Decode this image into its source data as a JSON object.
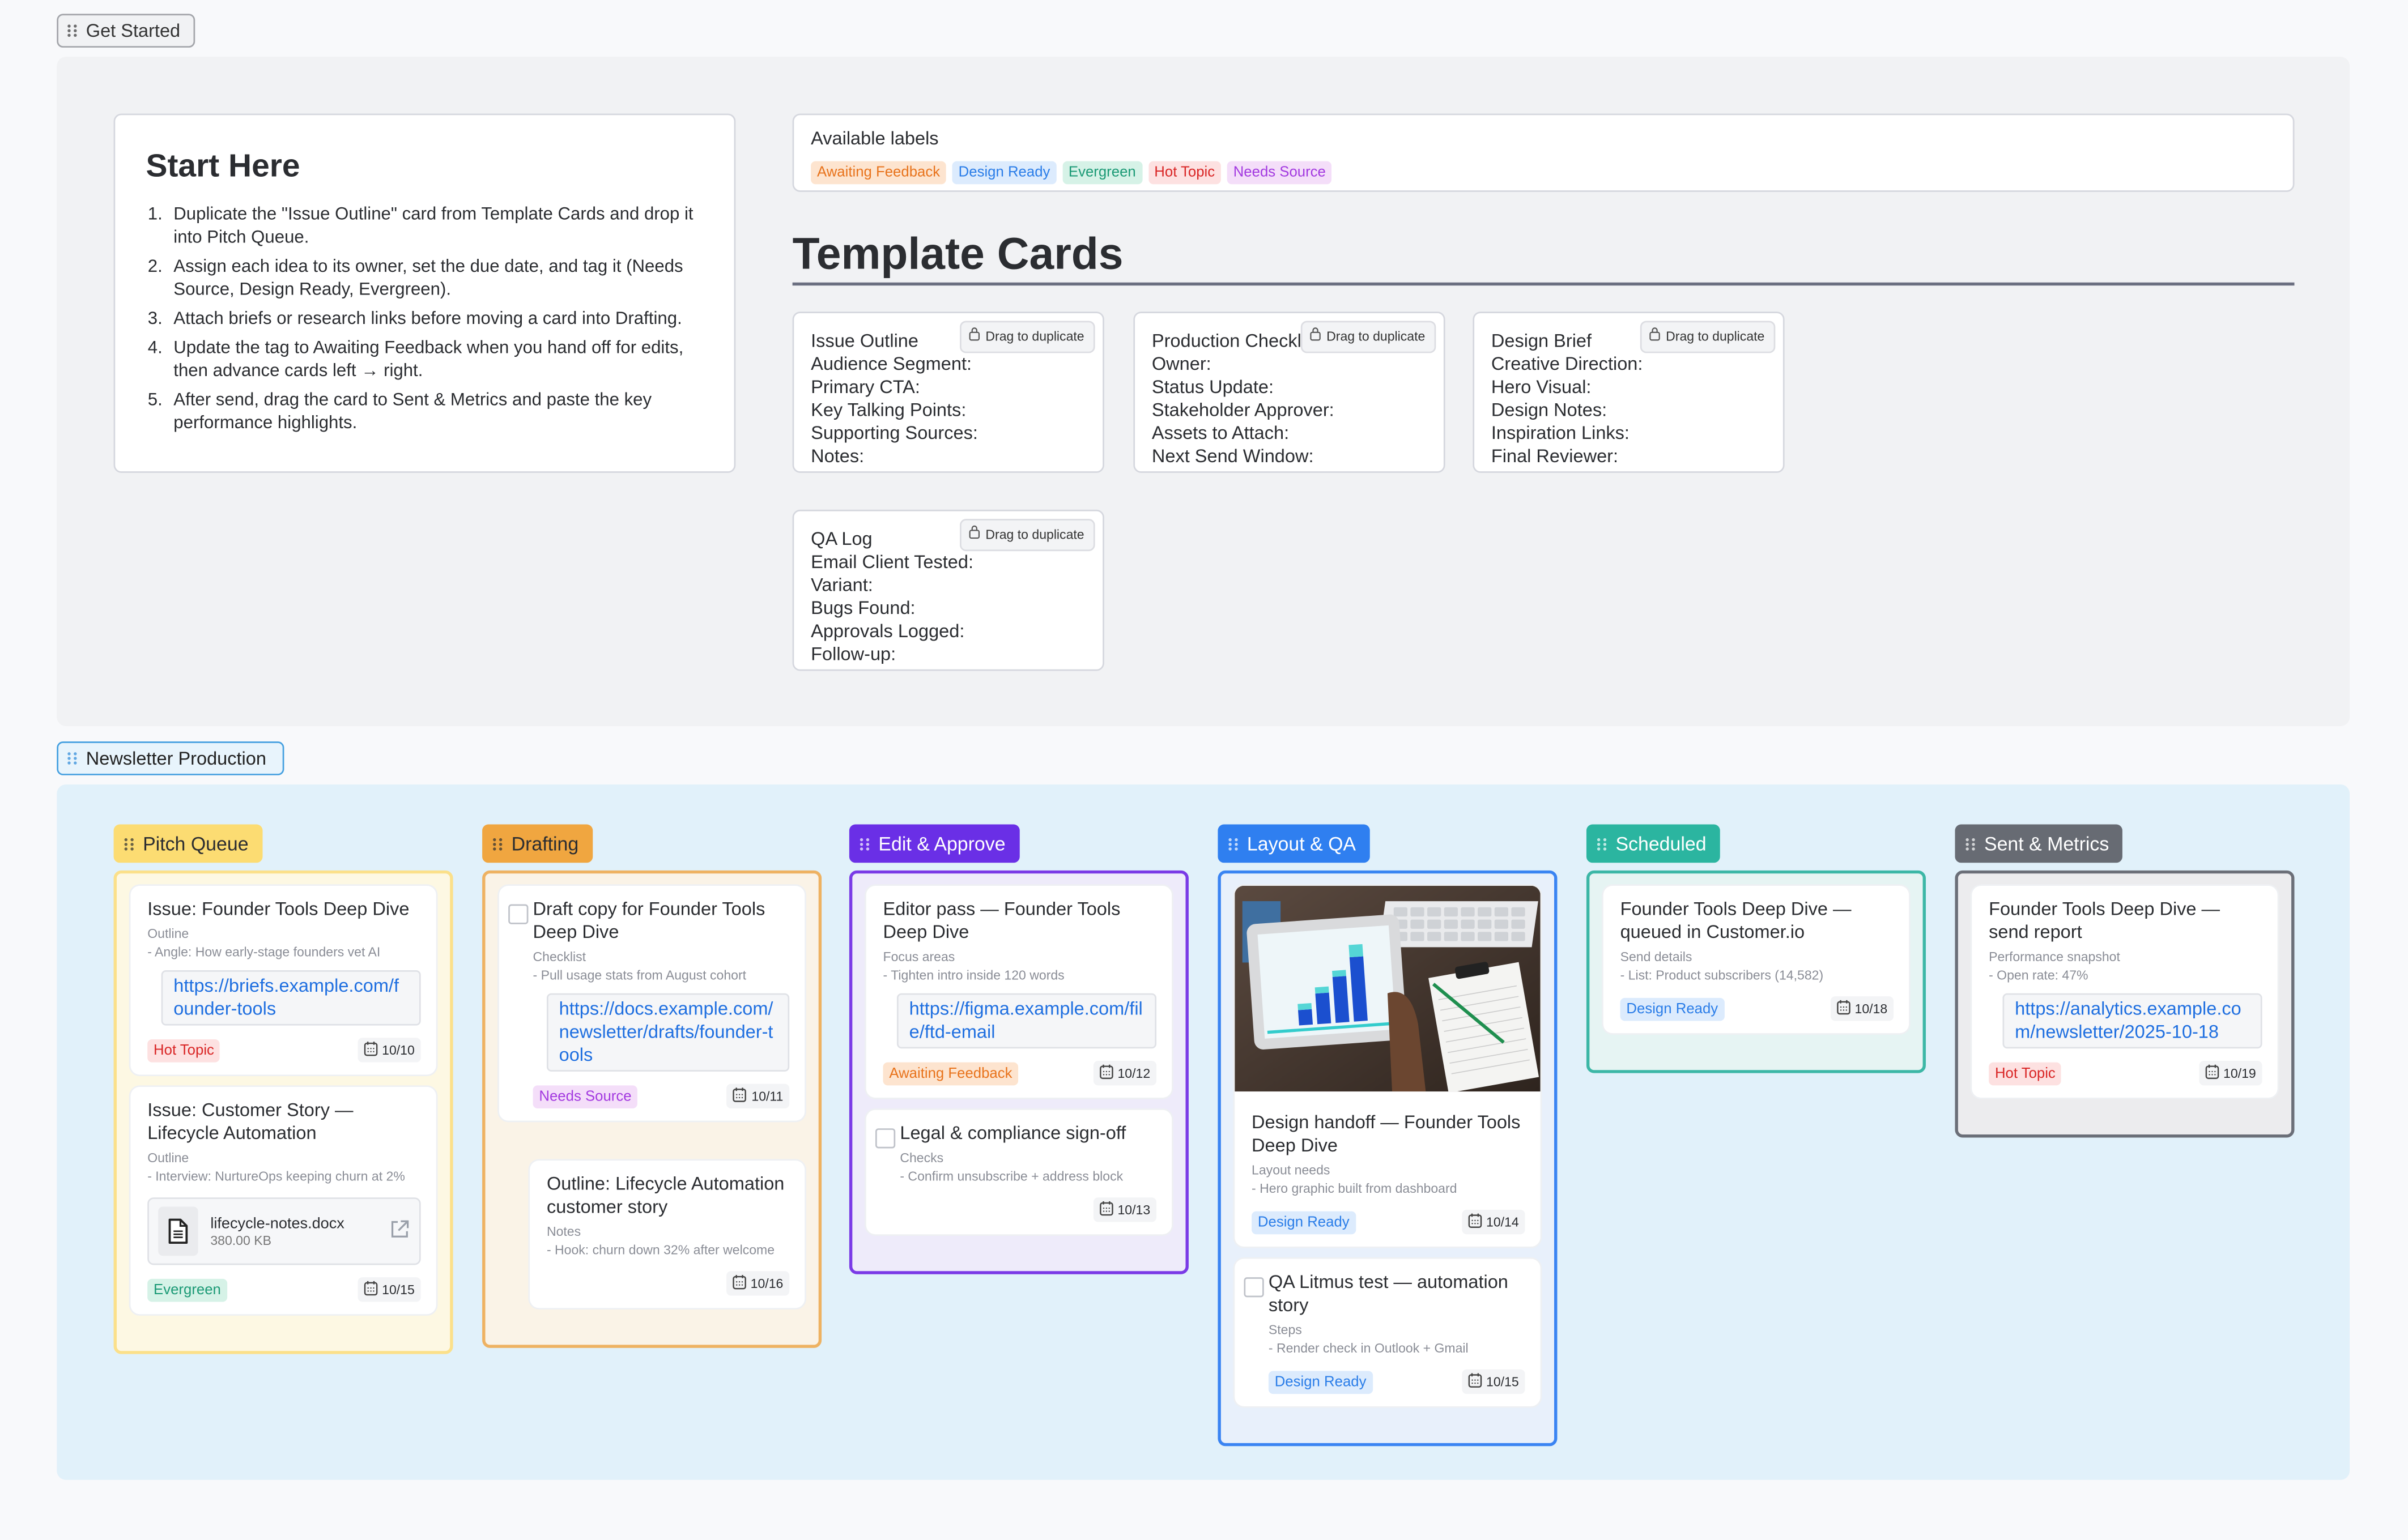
{
  "get_started": {
    "tab_label": "Get Started",
    "start_here": {
      "title": "Start Here",
      "steps": [
        "Duplicate the \"Issue Outline\" card from Template Cards and drop it into Pitch Queue.",
        "Assign each idea to its owner, set the due date, and tag it (Needs Source, Design Ready, Evergreen).",
        "Attach briefs or research links before moving a card into Drafting.",
        "Update the tag to Awaiting Feedback when you hand off for edits, then advance cards left → right.",
        "After send, drag the card to Sent & Metrics and paste the key performance highlights."
      ]
    },
    "labels": {
      "title": "Available labels",
      "items": [
        {
          "name": "Awaiting Feedback",
          "color": "#e8731c",
          "bg": "#fde4cf"
        },
        {
          "name": "Design Ready",
          "color": "#2a7de8",
          "bg": "#dcebfd"
        },
        {
          "name": "Evergreen",
          "color": "#1c9a76",
          "bg": "#d6f2e7"
        },
        {
          "name": "Hot Topic",
          "color": "#d92626",
          "bg": "#fde1e1"
        },
        {
          "name": "Needs Source",
          "color": "#a33ae0",
          "bg": "#f4def9"
        }
      ]
    },
    "template_heading": "Template Cards",
    "templates": [
      {
        "title": "Issue Outline",
        "action": "Drag to duplicate",
        "fields": [
          "Audience Segment:",
          "Primary CTA:",
          "Key Talking Points:",
          "Supporting Sources:",
          "Notes:"
        ]
      },
      {
        "title": "Production Checklist",
        "action": "Drag to duplicate",
        "fields": [
          "Owner:",
          "Status Update:",
          "Stakeholder Approver:",
          "Assets to Attach:",
          "Next Send Window:"
        ]
      },
      {
        "title": "Design Brief",
        "action": "Drag to duplicate",
        "fields": [
          "Creative Direction:",
          "Hero Visual:",
          "Design Notes:",
          "Inspiration Links:",
          "Final Reviewer:"
        ]
      },
      {
        "title": "QA Log",
        "action": "Drag to duplicate",
        "fields": [
          "Email Client Tested:",
          "Variant:",
          "Bugs Found:",
          "Approvals Logged:",
          "Follow-up:"
        ]
      }
    ]
  },
  "production": {
    "tab_label": "Newsletter Production",
    "columns": [
      {
        "title": "Pitch Queue",
        "head_bg": "#fcdc72",
        "head_fg": "#2b2d31",
        "border": "#fbe08a",
        "bg": "#fdf8e3",
        "cards": [
          {
            "title": "Issue: Founder Tools Deep Dive",
            "section": "Outline",
            "detail": "- Angle: How early-stage founders vet AI",
            "link": "https://briefs.example.com/founder-tools",
            "label": "Hot Topic",
            "date": "10/10"
          },
          {
            "title": "Issue: Customer Story — Lifecycle Automation",
            "section": "Outline",
            "detail": "- Interview: NurtureOps keeping churn at 2%",
            "file": {
              "name": "lifecycle-notes.docx",
              "size": "380.00 KB"
            },
            "label": "Evergreen",
            "date": "10/15"
          }
        ]
      },
      {
        "title": "Drafting",
        "head_bg": "#f0a640",
        "head_fg": "#2b2d31",
        "border": "#eeb262",
        "bg": "#faf3e7",
        "cards": [
          {
            "title": "Draft copy for Founder Tools Deep Dive",
            "checkbox": true,
            "section": "Checklist",
            "detail": "- Pull usage stats from August cohort",
            "link": "https://docs.example.com/newsletter/drafts/founder-tools",
            "label": "Needs Source",
            "date": "10/11"
          },
          {
            "title": "Outline: Lifecycle Automation customer story",
            "indent": true,
            "section": "Notes",
            "detail": "- Hook: churn down 32% after welcome",
            "date": "10/16"
          }
        ]
      },
      {
        "title": "Edit & Approve",
        "head_bg": "#6a2fe6",
        "head_fg": "#ffffff",
        "border": "#7a3ae6",
        "bg": "#eeebfa",
        "cards": [
          {
            "title": "Editor pass — Founder Tools Deep Dive",
            "section": "Focus areas",
            "detail": "- Tighten intro inside 120 words",
            "link": "https://figma.example.com/file/ftd-email",
            "label": "Awaiting Feedback",
            "date": "10/12"
          },
          {
            "title": "Legal & compliance sign-off",
            "checkbox": true,
            "section": "Checks",
            "detail": "- Confirm unsubscribe + address block",
            "date": "10/13"
          }
        ]
      },
      {
        "title": "Layout & QA",
        "head_bg": "#2f7ff0",
        "head_fg": "#ffffff",
        "border": "#3a84f2",
        "bg": "#e8f0fb",
        "cards": [
          {
            "title": "Design handoff — Founder Tools Deep Dive",
            "image": true,
            "section": "Layout needs",
            "detail": "- Hero graphic built from dashboard",
            "label": "Design Ready",
            "date": "10/14"
          },
          {
            "title": "QA Litmus test — automation story",
            "checkbox": true,
            "section": "Steps",
            "detail": "- Render check in Outlook + Gmail",
            "label": "Design Ready",
            "date": "10/15"
          }
        ]
      },
      {
        "title": "Scheduled",
        "head_bg": "#2bb5a0",
        "head_fg": "#ffffff",
        "border": "#3cb7a6",
        "bg": "#e6f4f3",
        "cards": [
          {
            "title": "Founder Tools Deep Dive — queued in Customer.io",
            "section": "Send details",
            "detail": "- List: Product subscribers (14,582)",
            "label": "Design Ready",
            "date": "10/18"
          }
        ]
      },
      {
        "title": "Sent & Metrics",
        "head_bg": "#676b73",
        "head_fg": "#ffffff",
        "border": "#6b6f78",
        "bg": "#ececee",
        "cards": [
          {
            "title": "Founder Tools Deep Dive — send report",
            "section": "Performance snapshot",
            "detail": "- Open rate: 47%",
            "link": "https://analytics.example.com/newsletter/2025-10-18",
            "label": "Hot Topic",
            "date": "10/19"
          }
        ]
      }
    ]
  }
}
